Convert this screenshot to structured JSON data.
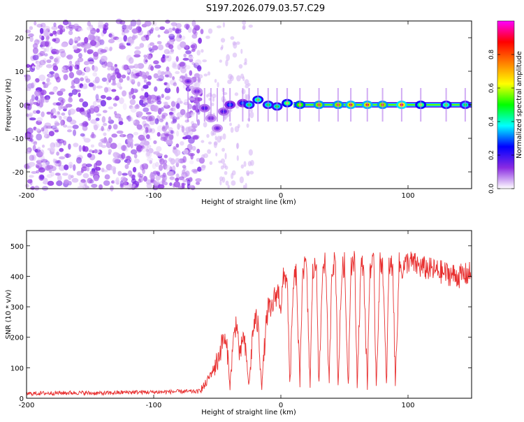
{
  "title": "S197.2026.079.03.57.C29",
  "chart_data": [
    {
      "type": "heatmap",
      "name": "spectrogram",
      "xlabel": "Height of straight line (km)",
      "ylabel": "Frequency (Hz)",
      "xlim": [
        -200,
        150
      ],
      "ylim": [
        -25,
        25
      ],
      "xticks": [
        -200,
        -100,
        0,
        100
      ],
      "yticks": [
        -20,
        -10,
        0,
        10,
        20
      ],
      "colorbar": {
        "label": "Normalized spectral amplitude",
        "range": [
          0,
          1
        ],
        "ticks": [
          0.0,
          0.2,
          0.4,
          0.6,
          0.8
        ],
        "tick_labels": [
          "0.0",
          "0.2",
          "0.4",
          "0.6",
          "0.8"
        ],
        "colormap": [
          "#ffffff",
          "#8a2be2",
          "#0000ff",
          "#00ffff",
          "#00ff00",
          "#ffff00",
          "#ff7f00",
          "#ff0000",
          "#ff00ff"
        ]
      },
      "noise_region": {
        "x_range": [
          -200,
          -62
        ],
        "freq_range": [
          -25,
          25
        ],
        "amplitude": [
          0.02,
          0.15
        ]
      },
      "signal_track": [
        {
          "x": -73,
          "freq": 7,
          "amp": 0.15
        },
        {
          "x": -66,
          "freq": 4,
          "amp": 0.15
        },
        {
          "x": -60,
          "freq": -1,
          "amp": 0.2
        },
        {
          "x": -55,
          "freq": -4,
          "amp": 0.15
        },
        {
          "x": -50,
          "freq": -7,
          "amp": 0.15
        },
        {
          "x": -45,
          "freq": -2,
          "amp": 0.2
        },
        {
          "x": -40,
          "freq": 0,
          "amp": 0.3
        },
        {
          "x": -30,
          "freq": 0.5,
          "amp": 0.3
        },
        {
          "x": -25,
          "freq": 0,
          "amp": 0.5
        },
        {
          "x": -18,
          "freq": 1.5,
          "amp": 0.55
        },
        {
          "x": -10,
          "freq": 0,
          "amp": 0.5
        },
        {
          "x": -3,
          "freq": -0.5,
          "amp": 0.5
        },
        {
          "x": 5,
          "freq": 0.5,
          "amp": 0.6
        },
        {
          "x": 15,
          "freq": 0,
          "amp": 0.7
        },
        {
          "x": 30,
          "freq": 0,
          "amp": 0.8
        },
        {
          "x": 45,
          "freq": 0,
          "amp": 0.8
        },
        {
          "x": 55,
          "freq": 0,
          "amp": 0.85
        },
        {
          "x": 68,
          "freq": 0,
          "amp": 0.85
        },
        {
          "x": 80,
          "freq": 0,
          "amp": 0.8
        },
        {
          "x": 95,
          "freq": 0,
          "amp": 0.9
        },
        {
          "x": 110,
          "freq": 0,
          "amp": 0.6
        },
        {
          "x": 130,
          "freq": 0,
          "amp": 0.55
        },
        {
          "x": 145,
          "freq": 0,
          "amp": 0.5
        }
      ]
    },
    {
      "type": "line",
      "name": "snr",
      "xlabel": "Height of straight line (km)",
      "ylabel": "SNR (10 * v/v)",
      "xlim": [
        -200,
        150
      ],
      "ylim": [
        0,
        550
      ],
      "xticks": [
        -200,
        -100,
        0,
        100
      ],
      "yticks": [
        0,
        100,
        200,
        300,
        400,
        500
      ],
      "color": "#e83030",
      "series": [
        {
          "name": "SNR",
          "x": [
            -200,
            -180,
            -160,
            -140,
            -120,
            -100,
            -80,
            -65,
            -60,
            -55,
            -50,
            -45,
            -42,
            -40,
            -38,
            -35,
            -32,
            -30,
            -28,
            -25,
            -22,
            -20,
            -18,
            -15,
            -12,
            -10,
            -8,
            -5,
            -2,
            0,
            2,
            5,
            7,
            10,
            12,
            15,
            17,
            20,
            23,
            25,
            28,
            30,
            33,
            35,
            38,
            40,
            43,
            45,
            48,
            50,
            53,
            55,
            58,
            60,
            63,
            65,
            68,
            70,
            73,
            75,
            78,
            80,
            83,
            85,
            88,
            90,
            93,
            95,
            100,
            110,
            120,
            130,
            140,
            150
          ],
          "y": [
            15,
            17,
            18,
            16,
            20,
            20,
            22,
            22,
            40,
            80,
            120,
            200,
            150,
            40,
            160,
            260,
            120,
            210,
            160,
            40,
            220,
            260,
            240,
            40,
            220,
            300,
            280,
            330,
            350,
            300,
            390,
            400,
            40,
            380,
            410,
            40,
            420,
            440,
            40,
            410,
            440,
            40,
            440,
            450,
            40,
            430,
            450,
            40,
            420,
            440,
            40,
            440,
            450,
            40,
            430,
            440,
            40,
            430,
            440,
            40,
            440,
            450,
            40,
            430,
            440,
            40,
            440,
            420,
            450,
            430,
            420,
            410,
            400,
            410
          ]
        }
      ]
    }
  ]
}
